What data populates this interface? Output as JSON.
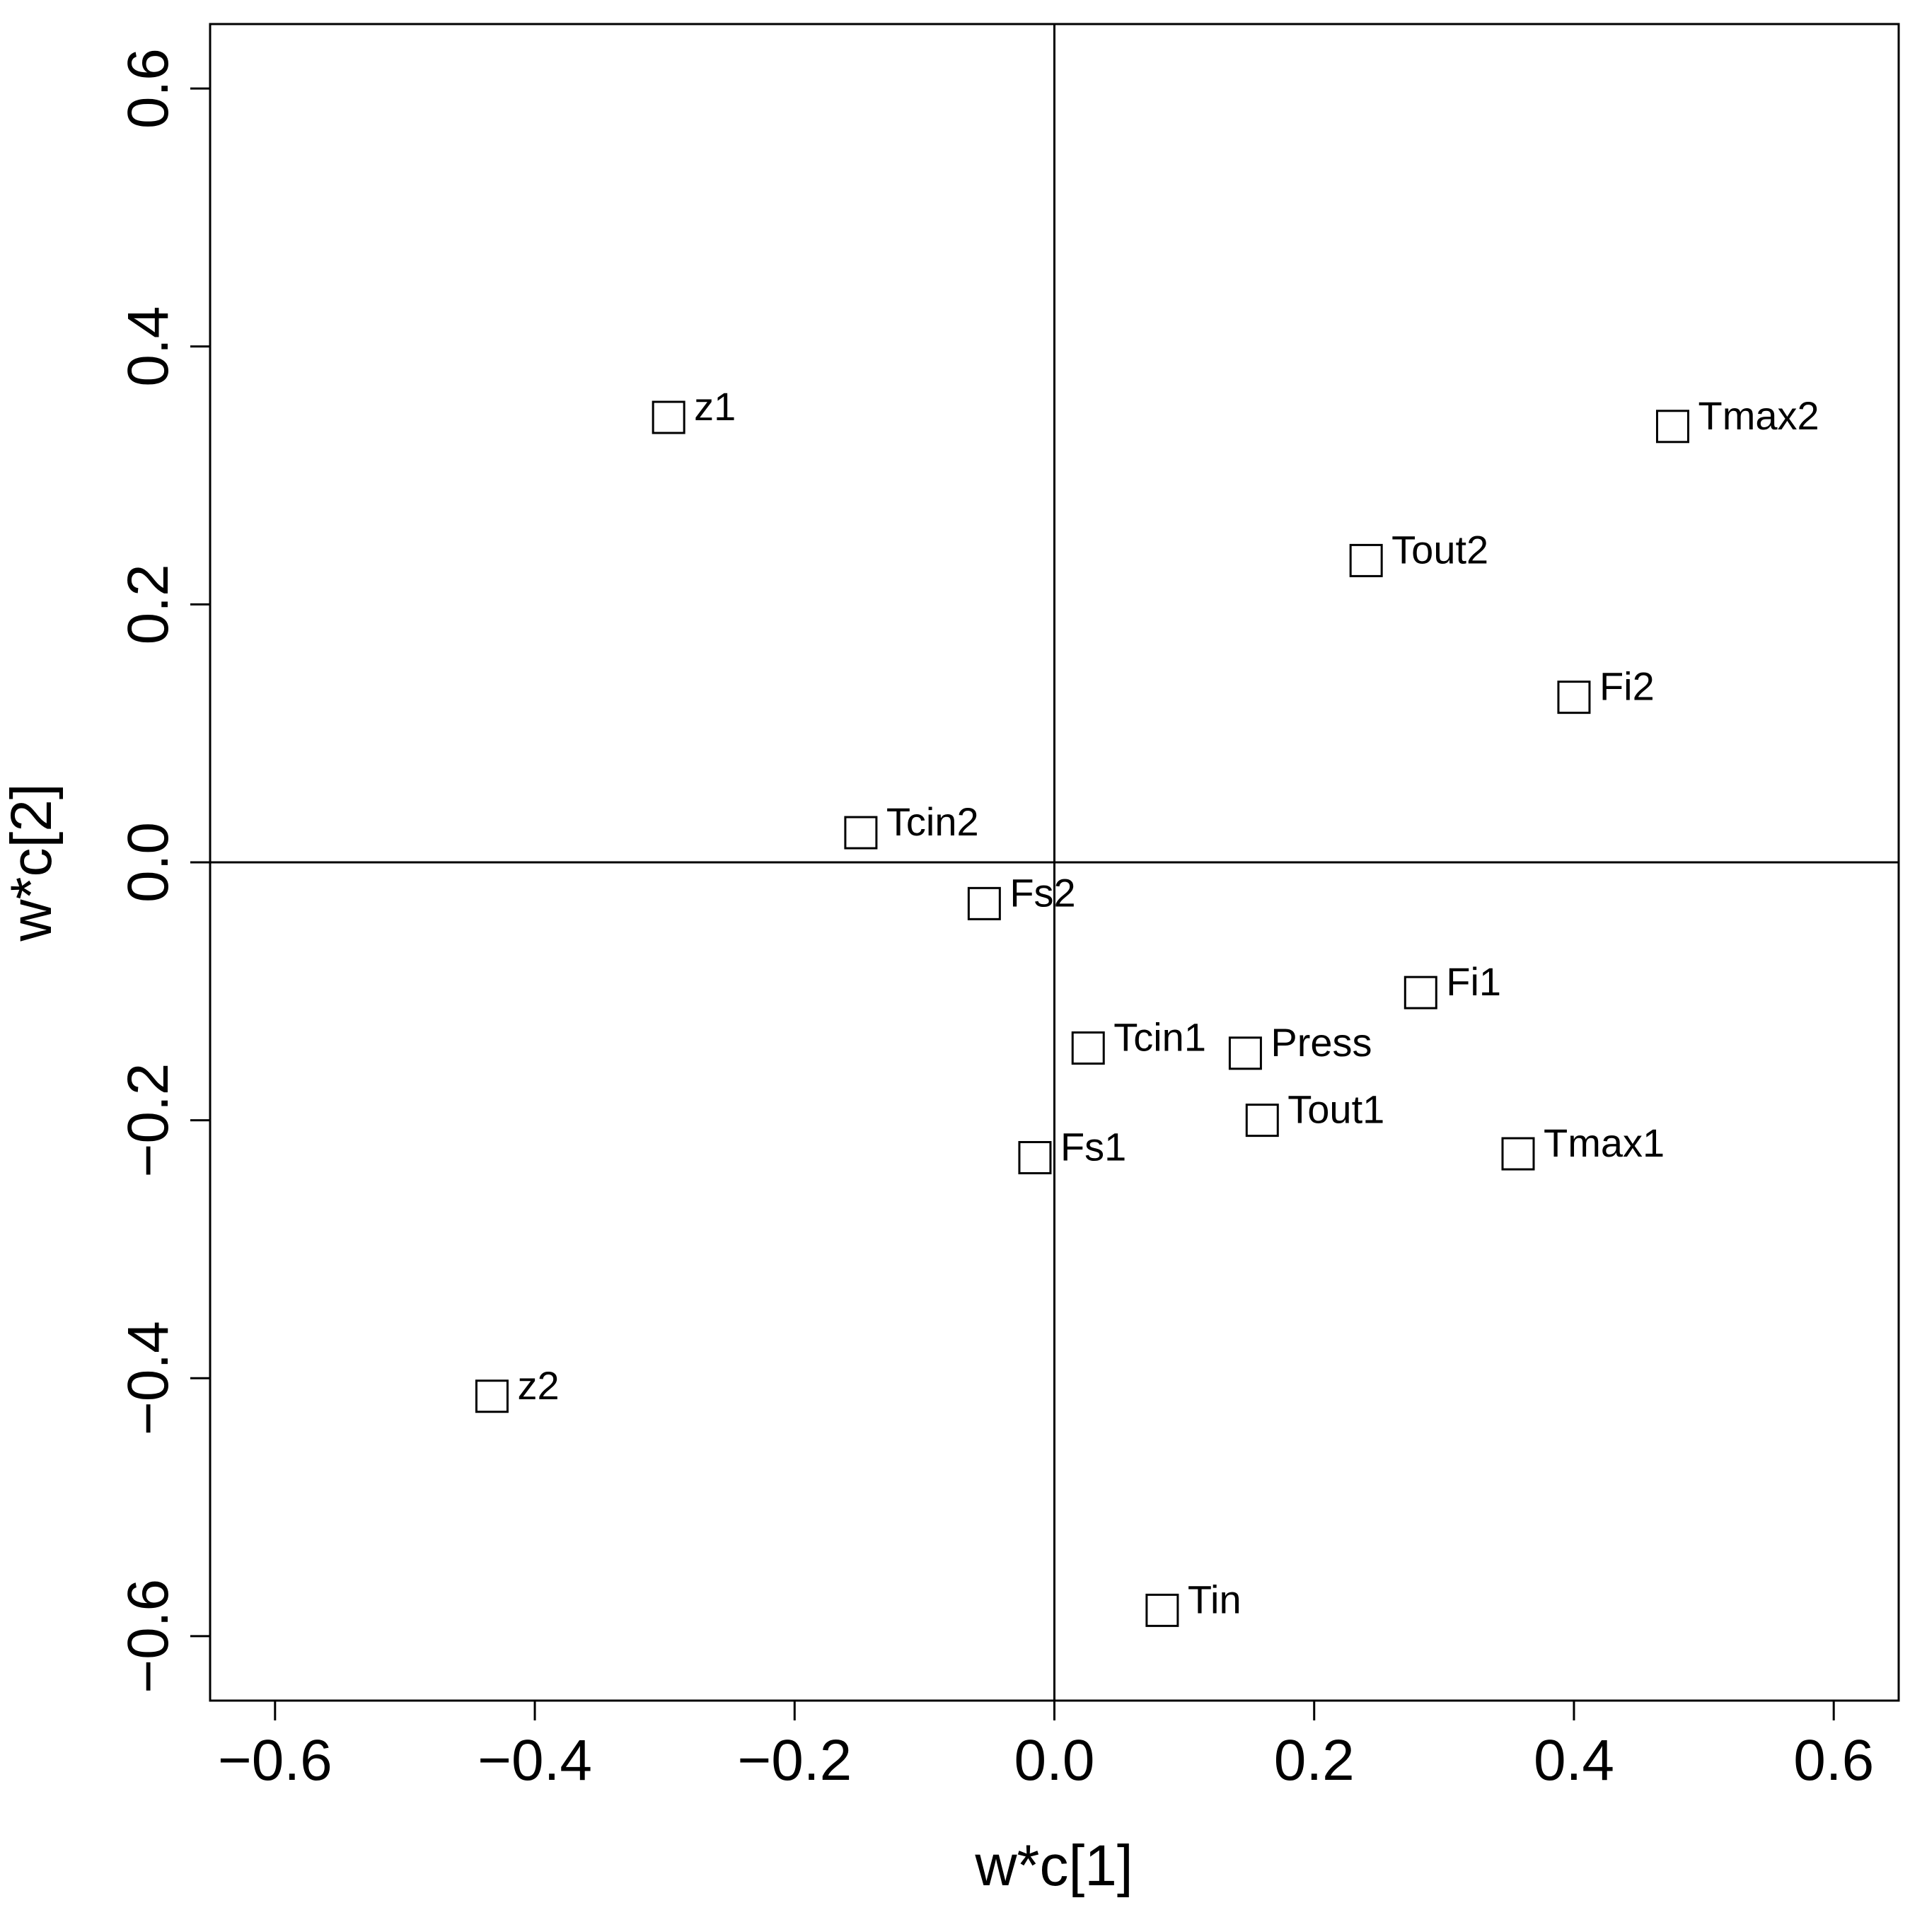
{
  "chart_data": {
    "type": "scatter",
    "xlabel": "w*c[1]",
    "ylabel": "w*c[2]",
    "xlim": [
      -0.65,
      0.65
    ],
    "ylim": [
      -0.65,
      0.65
    ],
    "xticks": [
      -0.6,
      -0.4,
      -0.2,
      0.0,
      0.2,
      0.4,
      0.6
    ],
    "yticks": [
      -0.6,
      -0.4,
      -0.2,
      0.0,
      0.2,
      0.4,
      0.6
    ],
    "xtick_labels": [
      "−0.6",
      "−0.4",
      "−0.2",
      "0.0",
      "0.2",
      "0.4",
      "0.6"
    ],
    "ytick_labels": [
      "−0.6",
      "−0.4",
      "−0.2",
      "0.0",
      "0.2",
      "0.4",
      "0.6"
    ],
    "reference_lines": {
      "x": 0.0,
      "y": 0.0
    },
    "grid": false,
    "marker": "open-square",
    "color": "#000000",
    "points": [
      {
        "label": "z1",
        "x": -0.297,
        "y": 0.345
      },
      {
        "label": "Tmax2",
        "x": 0.476,
        "y": 0.338
      },
      {
        "label": "Tout2",
        "x": 0.24,
        "y": 0.234
      },
      {
        "label": "Fi2",
        "x": 0.4,
        "y": 0.128
      },
      {
        "label": "Tcin2",
        "x": -0.149,
        "y": 0.023
      },
      {
        "label": "Fs2",
        "x": -0.054,
        "y": -0.032
      },
      {
        "label": "Fi1",
        "x": 0.282,
        "y": -0.101
      },
      {
        "label": "Tcin1",
        "x": 0.026,
        "y": -0.144
      },
      {
        "label": "Press",
        "x": 0.147,
        "y": -0.148
      },
      {
        "label": "Tout1",
        "x": 0.16,
        "y": -0.2
      },
      {
        "label": "Tmax1",
        "x": 0.357,
        "y": -0.226
      },
      {
        "label": "Fs1",
        "x": -0.015,
        "y": -0.229
      },
      {
        "label": "z2",
        "x": -0.433,
        "y": -0.414
      },
      {
        "label": "Tin",
        "x": 0.083,
        "y": -0.58
      }
    ]
  }
}
